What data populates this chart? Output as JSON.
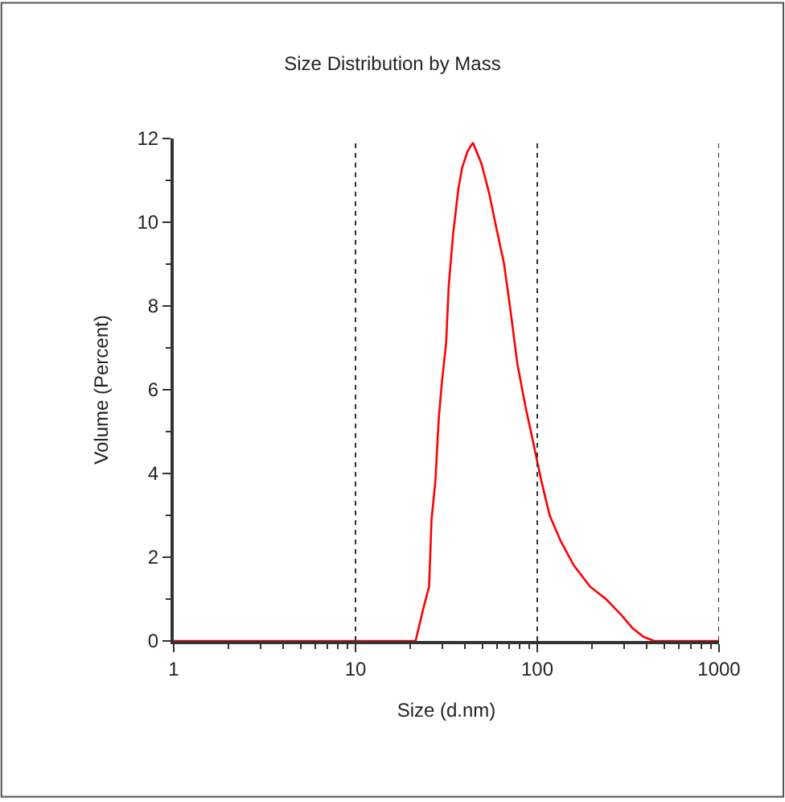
{
  "chart_data": {
    "type": "line",
    "title": "Size Distribution by Mass",
    "xlabel": "Size (d.nm)",
    "ylabel": "Volume (Percent)",
    "log": "x",
    "x": [
      1,
      21.4,
      23.7,
      25.4,
      26.2,
      27.5,
      28.7,
      29.9,
      31.5,
      32.6,
      34.4,
      36.8,
      38.6,
      41.4,
      44.3,
      49.3,
      54.3,
      59.3,
      65.7,
      71.2,
      77.8,
      86.1,
      95.4,
      105.6,
      117,
      134,
      159,
      195,
      239,
      293,
      335,
      384,
      440,
      1000
    ],
    "series": [
      {
        "color": "#ff0000",
        "values": [
          0,
          0,
          0.8,
          1.3,
          2.9,
          3.8,
          5.3,
          6.2,
          7.1,
          8.5,
          9.7,
          10.8,
          11.3,
          11.7,
          11.9,
          11.4,
          10.7,
          9.9,
          9.0,
          7.9,
          6.6,
          5.6,
          4.7,
          3.8,
          3.0,
          2.4,
          1.8,
          1.3,
          1.0,
          0.6,
          0.3,
          0.1,
          0,
          0
        ]
      }
    ],
    "xlim": [
      1,
      1000
    ],
    "ylim": [
      0,
      12
    ],
    "xticks": [
      1,
      {
        "value": 2,
        "label": null
      },
      {
        "value": 3,
        "label": null
      },
      {
        "value": 4,
        "label": null
      },
      {
        "value": 5,
        "label": null
      },
      {
        "value": 6,
        "label": null
      },
      {
        "value": 7,
        "label": null
      },
      {
        "value": 8,
        "label": null
      },
      {
        "value": 9,
        "label": null
      },
      10,
      {
        "value": 20,
        "label": null
      },
      {
        "value": 30,
        "label": null
      },
      {
        "value": 40,
        "label": null
      },
      {
        "value": 50,
        "label": null
      },
      {
        "value": 60,
        "label": null
      },
      {
        "value": 70,
        "label": null
      },
      {
        "value": 80,
        "label": null
      },
      {
        "value": 90,
        "label": null
      },
      100,
      {
        "value": 200,
        "label": null
      },
      {
        "value": 300,
        "label": null
      },
      {
        "value": 400,
        "label": null
      },
      {
        "value": 500,
        "label": null
      },
      {
        "value": 600,
        "label": null
      },
      {
        "value": 700,
        "label": null
      },
      {
        "value": 800,
        "label": null
      },
      {
        "value": 900,
        "label": null
      },
      1000
    ],
    "yticks": [
      0,
      {
        "value": 1,
        "label": null
      },
      2,
      {
        "value": 3,
        "label": null
      },
      4,
      {
        "value": 5,
        "label": null
      },
      6,
      {
        "value": 7,
        "label": null
      },
      8,
      {
        "value": 9,
        "label": null
      },
      10,
      {
        "value": 11,
        "label": null
      },
      12
    ],
    "grid": "x",
    "marker": "none",
    "line_style": "solid"
  }
}
